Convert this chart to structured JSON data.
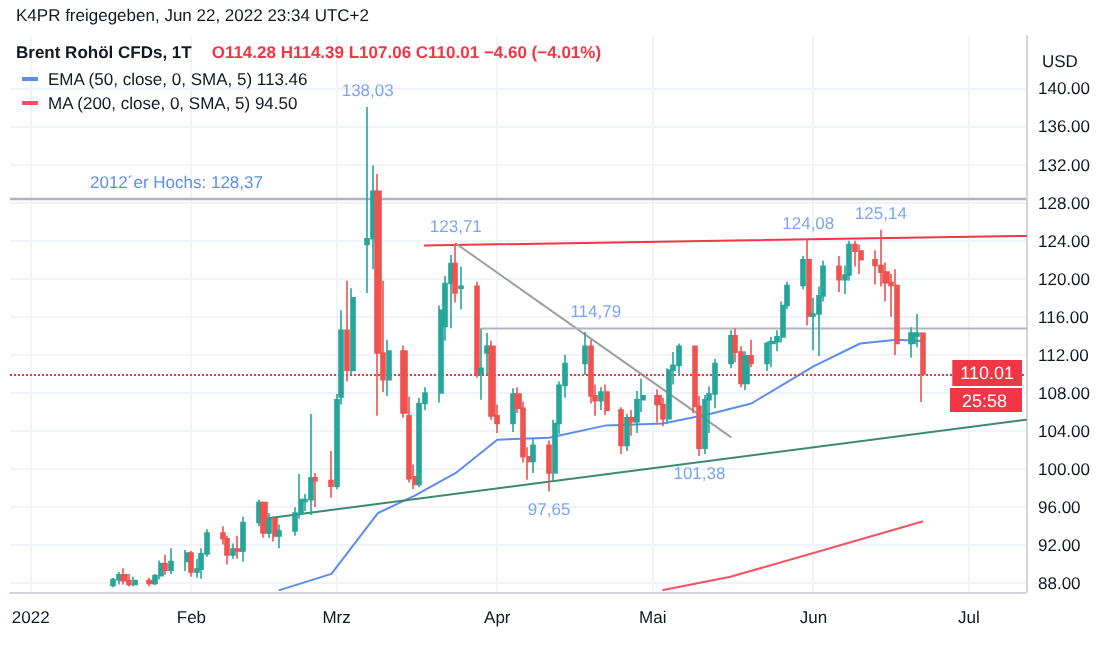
{
  "chart_data": {
    "type": "candlestick",
    "title": "Brent Rohöl CFDs, 1T",
    "subtitle": "O114.28 H114.39 L107.06 C110.01 −4.60 (−4.01%)",
    "ylabel": "USD",
    "x": [
      "2022-01-17",
      "2022-01-18",
      "2022-01-19",
      "2022-01-20",
      "2022-01-21",
      "2022-01-24",
      "2022-01-25",
      "2022-01-26",
      "2022-01-27",
      "2022-01-28",
      "2022-01-31",
      "2022-02-01",
      "2022-02-02",
      "2022-02-03",
      "2022-02-04",
      "2022-02-07",
      "2022-02-08",
      "2022-02-09",
      "2022-02-10",
      "2022-02-11",
      "2022-02-14",
      "2022-02-15",
      "2022-02-16",
      "2022-02-17",
      "2022-02-18",
      "2022-02-21",
      "2022-02-22",
      "2022-02-23",
      "2022-02-24",
      "2022-02-25",
      "2022-02-28",
      "2022-03-01",
      "2022-03-02",
      "2022-03-03",
      "2022-03-04",
      "2022-03-07",
      "2022-03-08",
      "2022-03-09",
      "2022-03-10",
      "2022-03-11",
      "2022-03-14",
      "2022-03-15",
      "2022-03-16",
      "2022-03-17",
      "2022-03-18",
      "2022-03-21",
      "2022-03-22",
      "2022-03-23",
      "2022-03-24",
      "2022-03-25",
      "2022-03-28",
      "2022-03-29",
      "2022-03-30",
      "2022-03-31",
      "2022-04-01",
      "2022-04-04",
      "2022-04-05",
      "2022-04-06",
      "2022-04-07",
      "2022-04-08",
      "2022-04-11",
      "2022-04-12",
      "2022-04-13",
      "2022-04-14",
      "2022-04-18",
      "2022-04-19",
      "2022-04-20",
      "2022-04-21",
      "2022-04-22",
      "2022-04-25",
      "2022-04-26",
      "2022-04-27",
      "2022-04-28",
      "2022-04-29",
      "2022-05-02",
      "2022-05-03",
      "2022-05-04",
      "2022-05-05",
      "2022-05-06",
      "2022-05-09",
      "2022-05-10",
      "2022-05-11",
      "2022-05-12",
      "2022-05-13",
      "2022-05-16",
      "2022-05-17",
      "2022-05-18",
      "2022-05-19",
      "2022-05-20",
      "2022-05-23",
      "2022-05-24",
      "2022-05-25",
      "2022-05-26",
      "2022-05-27",
      "2022-05-30",
      "2022-05-31",
      "2022-06-01",
      "2022-06-02",
      "2022-06-03",
      "2022-06-06",
      "2022-06-07",
      "2022-06-08",
      "2022-06-09",
      "2022-06-10",
      "2022-06-13",
      "2022-06-14",
      "2022-06-15",
      "2022-06-16",
      "2022-06-17",
      "2022-06-20",
      "2022-06-21",
      "2022-06-22"
    ],
    "ohlc": [
      [
        87.8,
        88.6,
        87.6,
        88.4
      ],
      [
        88.4,
        89.2,
        87.9,
        88.9
      ],
      [
        88.9,
        89.6,
        87.9,
        88.3
      ],
      [
        88.3,
        89.0,
        87.7,
        87.9
      ],
      [
        87.9,
        88.7,
        87.7,
        88.3
      ],
      [
        88.3,
        88.6,
        87.7,
        88.0
      ],
      [
        88.0,
        89.0,
        87.8,
        88.8
      ],
      [
        88.8,
        90.4,
        88.4,
        90.1
      ],
      [
        90.1,
        91.0,
        88.9,
        89.4
      ],
      [
        89.4,
        91.7,
        89.0,
        90.3
      ],
      [
        90.3,
        91.5,
        89.3,
        91.2
      ],
      [
        91.2,
        91.4,
        88.7,
        89.2
      ],
      [
        89.2,
        90.6,
        88.6,
        89.5
      ],
      [
        89.5,
        91.7,
        88.5,
        91.1
      ],
      [
        91.1,
        93.7,
        90.8,
        93.3
      ],
      [
        93.3,
        94.0,
        92.1,
        92.7
      ],
      [
        92.7,
        93.0,
        90.0,
        91.0
      ],
      [
        91.0,
        92.2,
        90.6,
        91.6
      ],
      [
        91.6,
        93.0,
        90.6,
        91.4
      ],
      [
        91.4,
        95.0,
        90.3,
        94.4
      ],
      [
        94.4,
        96.8,
        94.0,
        96.5
      ],
      [
        96.5,
        96.6,
        92.8,
        93.3
      ],
      [
        93.3,
        95.4,
        92.8,
        94.8
      ],
      [
        94.8,
        95.0,
        92.4,
        93.0
      ],
      [
        93.0,
        94.2,
        91.7,
        93.5
      ],
      [
        93.5,
        96.0,
        93.0,
        95.4
      ],
      [
        95.4,
        99.5,
        94.8,
        96.8
      ],
      [
        96.6,
        97.4,
        95.6,
        96.8
      ],
      [
        96.8,
        105.8,
        95.2,
        99.1
      ],
      [
        99.1,
        99.6,
        96.0,
        98.8
      ],
      [
        98.8,
        101.9,
        97.0,
        98.2
      ],
      [
        98.2,
        107.9,
        97.9,
        107.3
      ],
      [
        107.6,
        116.7,
        106.8,
        114.6
      ],
      [
        114.6,
        119.8,
        109.2,
        110.4
      ],
      [
        110.4,
        119.0,
        110.0,
        118.0
      ],
      [
        123.6,
        138.03,
        118.5,
        124.2
      ],
      [
        124.2,
        131.9,
        121.0,
        129.2
      ],
      [
        129.2,
        131.0,
        105.6,
        112.2
      ],
      [
        112.2,
        119.8,
        108.1,
        109.4
      ],
      [
        109.4,
        113.6,
        107.7,
        112.4
      ],
      [
        112.4,
        113.0,
        105.4,
        105.9
      ],
      [
        105.6,
        107.6,
        98.6,
        99.0
      ],
      [
        99.2,
        100.5,
        97.9,
        98.4
      ],
      [
        98.4,
        107.5,
        98.1,
        106.9
      ],
      [
        106.9,
        108.6,
        106.2,
        108.0
      ],
      [
        108.0,
        117.2,
        107.0,
        116.7
      ],
      [
        115.0,
        120.3,
        113.5,
        119.5
      ],
      [
        119.5,
        122.5,
        114.8,
        121.6
      ],
      [
        121.6,
        123.71,
        117.5,
        118.5
      ],
      [
        119.0,
        121.3,
        116.8,
        119.2
      ],
      [
        119.2,
        119.7,
        109.6,
        110.0
      ],
      [
        110.0,
        114.79,
        107.3,
        110.6
      ],
      [
        112.2,
        114.3,
        110.0,
        112.9
      ],
      [
        112.9,
        113.5,
        105.2,
        105.6
      ],
      [
        105.6,
        106.8,
        103.8,
        104.8
      ],
      [
        104.8,
        108.5,
        103.9,
        107.9
      ],
      [
        107.9,
        108.6,
        105.9,
        106.4
      ],
      [
        106.4,
        107.1,
        100.7,
        101.3
      ],
      [
        101.3,
        102.3,
        98.9,
        100.8
      ],
      [
        100.8,
        103.2,
        99.6,
        102.5
      ],
      [
        102.5,
        103.0,
        97.65,
        99.6
      ],
      [
        99.6,
        105.2,
        98.8,
        104.8
      ],
      [
        104.8,
        109.2,
        103.7,
        108.8
      ],
      [
        108.8,
        112.0,
        107.5,
        111.1
      ],
      [
        111.1,
        114.4,
        109.9,
        112.9
      ],
      [
        112.9,
        113.6,
        106.9,
        107.7
      ],
      [
        107.7,
        108.9,
        105.6,
        107.2
      ],
      [
        107.2,
        108.6,
        106.2,
        108.1
      ],
      [
        108.1,
        108.9,
        105.7,
        106.2
      ],
      [
        106.2,
        106.5,
        101.6,
        102.5
      ],
      [
        102.5,
        105.8,
        101.9,
        105.4
      ],
      [
        105.4,
        106.2,
        103.5,
        105.0
      ],
      [
        105.0,
        108.2,
        103.8,
        107.3
      ],
      [
        107.3,
        109.5,
        106.0,
        107.7
      ],
      [
        107.7,
        108.4,
        104.9,
        106.8
      ],
      [
        106.8,
        107.5,
        104.5,
        105.3
      ],
      [
        105.3,
        110.6,
        104.8,
        110.4
      ],
      [
        110.4,
        112.3,
        108.9,
        110.9
      ],
      [
        110.9,
        113.2,
        109.8,
        112.9
      ],
      [
        112.9,
        113.0,
        105.9,
        106.6
      ],
      [
        106.6,
        107.7,
        101.38,
        102.2
      ],
      [
        102.2,
        107.8,
        101.6,
        107.3
      ],
      [
        107.3,
        108.7,
        103.8,
        107.9
      ],
      [
        107.9,
        111.6,
        106.4,
        111.1
      ],
      [
        111.1,
        114.6,
        110.6,
        114.0
      ],
      [
        114.0,
        114.8,
        111.2,
        112.3
      ],
      [
        112.3,
        112.9,
        108.6,
        109.0
      ],
      [
        109.0,
        112.4,
        108.3,
        111.9
      ],
      [
        111.9,
        113.6,
        110.7,
        111.1
      ],
      [
        111.1,
        113.4,
        110.3,
        113.2
      ],
      [
        113.2,
        113.9,
        110.7,
        113.4
      ],
      [
        113.4,
        114.6,
        112.4,
        113.9
      ],
      [
        113.9,
        117.6,
        113.3,
        117.2
      ],
      [
        117.2,
        119.7,
        116.8,
        119.3
      ],
      [
        119.3,
        122.4,
        118.9,
        122.0
      ],
      [
        122.0,
        124.08,
        115.1,
        116.1
      ],
      [
        116.1,
        118.0,
        112.5,
        116.3
      ],
      [
        116.3,
        119.2,
        111.9,
        118.2
      ],
      [
        118.2,
        121.9,
        117.6,
        121.3
      ],
      [
        121.3,
        122.4,
        118.6,
        119.9
      ],
      [
        119.9,
        121.4,
        118.4,
        120.4
      ],
      [
        120.4,
        124.0,
        119.8,
        123.6
      ],
      [
        123.6,
        124.0,
        121.3,
        122.9
      ],
      [
        122.9,
        123.6,
        120.5,
        122.0
      ],
      [
        122.0,
        123.0,
        119.4,
        121.4
      ],
      [
        121.4,
        125.14,
        119.2,
        120.7
      ],
      [
        120.7,
        121.7,
        117.6,
        119.6
      ],
      [
        119.6,
        120.5,
        116.0,
        119.3
      ],
      [
        119.3,
        121.0,
        112.0,
        113.2
      ],
      [
        113.2,
        114.9,
        111.7,
        114.3
      ],
      [
        114.0,
        116.3,
        112.8,
        114.28
      ],
      [
        114.28,
        114.39,
        107.06,
        110.01
      ]
    ],
    "series": [
      {
        "type": "line",
        "name": "EMA (50, close, 0, SMA, 5) 113.46",
        "color": "#5b8def",
        "x": [
          "2022-02-18",
          "2022-02-28",
          "2022-03-09",
          "2022-03-16",
          "2022-03-24",
          "2022-04-01",
          "2022-04-11",
          "2022-04-22",
          "2022-05-03",
          "2022-05-12",
          "2022-05-20",
          "2022-06-01",
          "2022-06-10",
          "2022-06-17",
          "2022-06-22"
        ],
        "values": [
          87.3,
          89.0,
          95.4,
          97.2,
          99.6,
          103.1,
          103.3,
          104.6,
          104.8,
          105.8,
          106.9,
          110.8,
          113.2,
          113.6,
          113.46
        ]
      },
      {
        "type": "line",
        "name": "MA (200, close, 0, SMA, 5) 94.50",
        "color": "#f7525f",
        "x": [
          "2022-05-03",
          "2022-05-16",
          "2022-06-01",
          "2022-06-22"
        ],
        "values": [
          87.3,
          88.7,
          91.2,
          94.5
        ]
      },
      {
        "type": "line",
        "color": "#3b8a6e",
        "x": [
          "2022-02-15",
          "2022-07-12"
        ],
        "values": [
          94.8,
          105.2
        ]
      },
      {
        "type": "line",
        "color": "#f23645",
        "x": [
          "2022-03-18",
          "2022-07-12"
        ],
        "values": [
          123.5,
          124.5
        ]
      },
      {
        "type": "line",
        "color": "#9e9e9e",
        "x": [
          "2022-03-24",
          "2022-05-16"
        ],
        "values": [
          123.71,
          103.4
        ]
      },
      {
        "type": "line",
        "color": "#b2b5be",
        "x": [
          "2022-03-29",
          "2022-07-12"
        ],
        "values": [
          114.79,
          114.79
        ]
      }
    ],
    "ref_lines": [
      {
        "axis": "y",
        "value": 128.37,
        "label": "2012´er Hochs: 128,37",
        "color": "#b2b5be"
      },
      {
        "axis": "y",
        "value": 110.01,
        "label": "110.01",
        "color": "#f23645",
        "line_style": "dotted"
      }
    ],
    "annotations": [
      "K4PR freigegeben, Jun 22, 2022 23:34 UTC+2",
      "25:58",
      {
        "text": "138,03",
        "x": "2022-03-07",
        "y": 138.03
      },
      {
        "text": "123,71",
        "x": "2022-03-24",
        "y": 123.71
      },
      {
        "text": "124,08",
        "x": "2022-05-31",
        "y": 124.08
      },
      {
        "text": "125,14",
        "x": "2022-06-14",
        "y": 125.14
      },
      {
        "text": "114,79",
        "x": "2022-04-20",
        "y": 114.79
      },
      {
        "text": "97,65",
        "x": "2022-04-11",
        "y": 97.65
      },
      {
        "text": "101,38",
        "x": "2022-05-10",
        "y": 101.38
      }
    ],
    "xlim": [
      "2021-12-28",
      "2022-07-12"
    ],
    "xticks": [
      {
        "value": "2022-01-01",
        "label": "2022"
      },
      {
        "value": "2022-02-01",
        "label": "Feb"
      },
      {
        "value": "2022-03-01",
        "label": "Mrz"
      },
      {
        "value": "2022-04-01",
        "label": "Apr"
      },
      {
        "value": "2022-05-01",
        "label": "Mai"
      },
      {
        "value": "2022-06-01",
        "label": "Jun"
      },
      {
        "value": "2022-07-01",
        "label": "Jul"
      }
    ],
    "ylim": [
      87.1,
      145.5
    ],
    "yticks": [
      {
        "value": 88,
        "label": "88.00"
      },
      {
        "value": 92,
        "label": "92.00"
      },
      {
        "value": 96,
        "label": "96.00"
      },
      {
        "value": 100,
        "label": "100.00"
      },
      {
        "value": 104,
        "label": "104.00"
      },
      {
        "value": 108,
        "label": "108.00"
      },
      {
        "value": 112,
        "label": "112.00"
      },
      {
        "value": 116,
        "label": "116.00"
      },
      {
        "value": 120,
        "label": "120.00"
      },
      {
        "value": 124,
        "label": "124.00"
      },
      {
        "value": 128,
        "label": "128.00"
      },
      {
        "value": 132,
        "label": "132.00"
      },
      {
        "value": 136,
        "label": "136.00"
      },
      {
        "value": 140,
        "label": "140.00"
      }
    ],
    "grid": true,
    "legend": "top left",
    "marker": "none"
  }
}
